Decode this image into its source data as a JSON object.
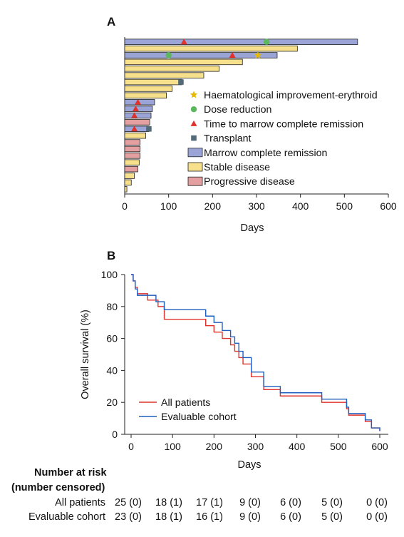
{
  "chart_data": [
    {
      "panel_label": "A",
      "type": "bar",
      "orientation": "horizontal",
      "xlabel": "Days",
      "xticks": [
        0,
        100,
        200,
        300,
        400,
        500,
        600
      ],
      "xlim": [
        0,
        600
      ],
      "legend": {
        "placement": "right",
        "markers": [
          {
            "label": "Haematological improvement-erythroid",
            "shape": "star",
            "color": "#e6b800"
          },
          {
            "label": "Dose reduction",
            "shape": "circle",
            "color": "#5cb85c"
          },
          {
            "label": "Time to marrow complete remission",
            "shape": "triangle",
            "color": "#e0322a"
          },
          {
            "label": "Transplant",
            "shape": "square",
            "color": "#536b78"
          }
        ],
        "bars": [
          {
            "label": "Marrow complete remission",
            "color": "#9aa4d6"
          },
          {
            "label": "Stable disease",
            "color": "#f7e08c"
          },
          {
            "label": "Progressive disease",
            "color": "#e4a0a0"
          }
        ]
      },
      "patients": [
        {
          "days": 530,
          "status": "cr",
          "triangle": 135,
          "circle": 323
        },
        {
          "days": 393,
          "status": "sd"
        },
        {
          "days": 347,
          "status": "cr",
          "circle": 100,
          "triangle": 245,
          "star": 303
        },
        {
          "days": 268,
          "status": "sd"
        },
        {
          "days": 215,
          "status": "sd"
        },
        {
          "days": 180,
          "status": "sd"
        },
        {
          "days": 130,
          "status": "sd",
          "square": 128
        },
        {
          "days": 108,
          "status": "sd"
        },
        {
          "days": 95,
          "status": "sd"
        },
        {
          "days": 68,
          "status": "cr",
          "triangle": 30
        },
        {
          "days": 63,
          "status": "cr",
          "triangle": 25
        },
        {
          "days": 60,
          "status": "cr",
          "triangle": 22
        },
        {
          "days": 57,
          "status": "pd"
        },
        {
          "days": 55,
          "status": "cr",
          "triangle": 22,
          "square": 55
        },
        {
          "days": 48,
          "status": "sd"
        },
        {
          "days": 35,
          "status": "pd"
        },
        {
          "days": 35,
          "status": "pd"
        },
        {
          "days": 35,
          "status": "pd"
        },
        {
          "days": 33,
          "status": "sd"
        },
        {
          "days": 30,
          "status": "pd"
        },
        {
          "days": 22,
          "status": "sd"
        },
        {
          "days": 15,
          "status": "sd"
        },
        {
          "days": 5,
          "status": "sd"
        }
      ]
    },
    {
      "panel_label": "B",
      "type": "line",
      "step": true,
      "xlabel": "Days",
      "ylabel": "Overall survival (%)",
      "xticks": [
        0,
        100,
        200,
        300,
        400,
        500,
        600
      ],
      "yticks": [
        0,
        20,
        40,
        60,
        80,
        100
      ],
      "xlim": [
        0,
        600
      ],
      "ylim": [
        0,
        100
      ],
      "legend_placement": "bottom-left",
      "series": [
        {
          "name": "All patients",
          "color": "#e0322a",
          "points": [
            [
              0,
              100
            ],
            [
              5,
              96
            ],
            [
              10,
              92
            ],
            [
              15,
              88
            ],
            [
              40,
              84
            ],
            [
              65,
              80
            ],
            [
              80,
              72
            ],
            [
              180,
              68
            ],
            [
              200,
              64
            ],
            [
              220,
              60
            ],
            [
              240,
              56
            ],
            [
              250,
              52
            ],
            [
              260,
              48
            ],
            [
              270,
              44
            ],
            [
              290,
              36
            ],
            [
              320,
              28
            ],
            [
              360,
              24
            ],
            [
              460,
              20
            ],
            [
              520,
              16
            ],
            [
              525,
              12
            ],
            [
              565,
              8
            ],
            [
              580,
              4
            ],
            [
              600,
              2
            ]
          ]
        },
        {
          "name": "Evaluable cohort",
          "color": "#1f5fbf",
          "points": [
            [
              0,
              100
            ],
            [
              5,
              96
            ],
            [
              10,
              91
            ],
            [
              15,
              87
            ],
            [
              60,
              83
            ],
            [
              80,
              78
            ],
            [
              180,
              74
            ],
            [
              200,
              70
            ],
            [
              220,
              65
            ],
            [
              240,
              61
            ],
            [
              250,
              57
            ],
            [
              260,
              52
            ],
            [
              270,
              48
            ],
            [
              290,
              39
            ],
            [
              320,
              30
            ],
            [
              360,
              26
            ],
            [
              460,
              22
            ],
            [
              520,
              17
            ],
            [
              525,
              13
            ],
            [
              565,
              9
            ],
            [
              580,
              4
            ],
            [
              600,
              2
            ]
          ]
        }
      ]
    }
  ],
  "risk_table": {
    "heading_line1": "Number at risk",
    "heading_line2": "(number censored)",
    "rows": [
      {
        "label": "All patients",
        "values": [
          "25 (0)",
          "18 (1)",
          "17 (1)",
          "9 (0)",
          "6 (0)",
          "5 (0)",
          "0 (0)"
        ]
      },
      {
        "label": "Evaluable cohort",
        "values": [
          "23 (0)",
          "18 (1)",
          "16 (1)",
          "9 (0)",
          "6 (0)",
          "5 (0)",
          "0 (0)"
        ]
      }
    ]
  }
}
